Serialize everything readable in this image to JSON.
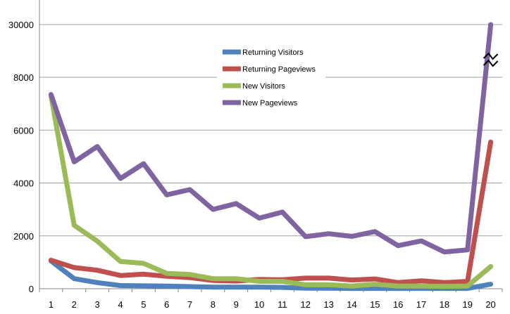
{
  "chart_data": {
    "type": "line",
    "title": "",
    "xlabel": "",
    "ylabel": "",
    "x": [
      1,
      2,
      3,
      4,
      5,
      6,
      7,
      8,
      9,
      10,
      11,
      12,
      13,
      14,
      15,
      16,
      17,
      18,
      19,
      20
    ],
    "y_ticks": [
      "0",
      "2000",
      "4000",
      "6000",
      "8000",
      "30000"
    ],
    "y_break": "between 8000 and 30000",
    "ylim": [
      0,
      30000
    ],
    "grid": true,
    "legend_position": "top-center",
    "series": [
      {
        "name": "Returning Visitors",
        "color": "#4f81bd",
        "values": [
          1050,
          380,
          230,
          120,
          110,
          100,
          80,
          60,
          60,
          60,
          50,
          20,
          20,
          10,
          10,
          10,
          10,
          10,
          10,
          170
        ]
      },
      {
        "name": "Returning Pageviews",
        "color": "#c0504d",
        "values": [
          1080,
          800,
          700,
          500,
          550,
          470,
          420,
          310,
          290,
          350,
          340,
          400,
          400,
          330,
          370,
          230,
          300,
          230,
          280,
          5550
        ]
      },
      {
        "name": "New Visitors",
        "color": "#9bbb59",
        "values": [
          7300,
          2400,
          1800,
          1030,
          960,
          580,
          540,
          380,
          380,
          280,
          280,
          150,
          150,
          100,
          170,
          100,
          100,
          90,
          100,
          840
        ]
      },
      {
        "name": "New Pageviews",
        "color": "#8064a2",
        "values": [
          7350,
          4800,
          5380,
          4170,
          4730,
          3550,
          3750,
          3000,
          3220,
          2670,
          2900,
          1970,
          2080,
          1980,
          2160,
          1630,
          1810,
          1390,
          1470,
          30000
        ]
      }
    ]
  }
}
